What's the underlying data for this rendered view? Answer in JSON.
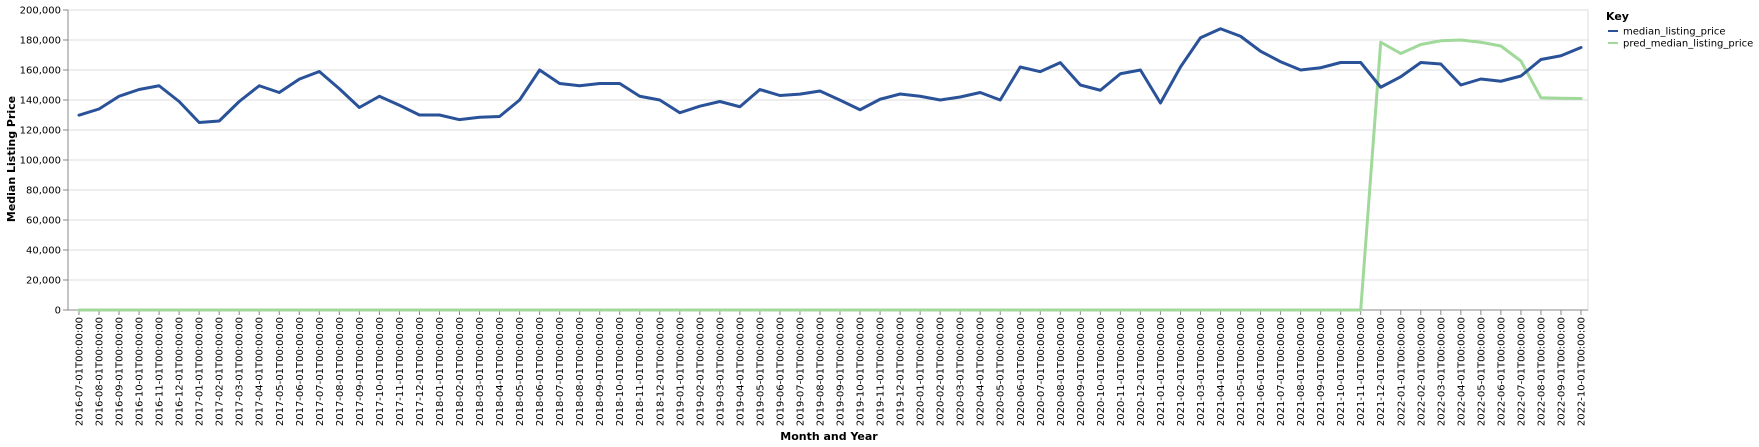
{
  "chart_data": {
    "type": "line",
    "xlabel": "Month and Year",
    "ylabel": "Median Listing Price",
    "ylim": [
      0,
      200000
    ],
    "y_ticks": [
      "0",
      "20,000",
      "40,000",
      "60,000",
      "80,000",
      "100,000",
      "120,000",
      "140,000",
      "160,000",
      "180,000",
      "200,000"
    ],
    "grid": true,
    "legend_position": "right",
    "legend_title": "Key",
    "x": [
      "2016-07-01T00:00:00",
      "2016-08-01T00:00:00",
      "2016-09-01T00:00:00",
      "2016-10-01T00:00:00",
      "2016-11-01T00:00:00",
      "2016-12-01T00:00:00",
      "2017-01-01T00:00:00",
      "2017-02-01T00:00:00",
      "2017-03-01T00:00:00",
      "2017-04-01T00:00:00",
      "2017-05-01T00:00:00",
      "2017-06-01T00:00:00",
      "2017-07-01T00:00:00",
      "2017-08-01T00:00:00",
      "2017-09-01T00:00:00",
      "2017-10-01T00:00:00",
      "2017-11-01T00:00:00",
      "2017-12-01T00:00:00",
      "2018-01-01T00:00:00",
      "2018-02-01T00:00:00",
      "2018-03-01T00:00:00",
      "2018-04-01T00:00:00",
      "2018-05-01T00:00:00",
      "2018-06-01T00:00:00",
      "2018-07-01T00:00:00",
      "2018-08-01T00:00:00",
      "2018-09-01T00:00:00",
      "2018-10-01T00:00:00",
      "2018-11-01T00:00:00",
      "2018-12-01T00:00:00",
      "2019-01-01T00:00:00",
      "2019-02-01T00:00:00",
      "2019-03-01T00:00:00",
      "2019-04-01T00:00:00",
      "2019-05-01T00:00:00",
      "2019-06-01T00:00:00",
      "2019-07-01T00:00:00",
      "2019-08-01T00:00:00",
      "2019-09-01T00:00:00",
      "2019-10-01T00:00:00",
      "2019-11-01T00:00:00",
      "2019-12-01T00:00:00",
      "2020-01-01T00:00:00",
      "2020-02-01T00:00:00",
      "2020-03-01T00:00:00",
      "2020-04-01T00:00:00",
      "2020-05-01T00:00:00",
      "2020-06-01T00:00:00",
      "2020-07-01T00:00:00",
      "2020-08-01T00:00:00",
      "2020-09-01T00:00:00",
      "2020-10-01T00:00:00",
      "2020-11-01T00:00:00",
      "2020-12-01T00:00:00",
      "2021-01-01T00:00:00",
      "2021-02-01T00:00:00",
      "2021-03-01T00:00:00",
      "2021-04-01T00:00:00",
      "2021-05-01T00:00:00",
      "2021-06-01T00:00:00",
      "2021-07-01T00:00:00",
      "2021-08-01T00:00:00",
      "2021-09-01T00:00:00",
      "2021-10-01T00:00:00",
      "2021-11-01T00:00:00",
      "2021-12-01T00:00:00",
      "2022-01-01T00:00:00",
      "2022-02-01T00:00:00",
      "2022-03-01T00:00:00",
      "2022-04-01T00:00:00",
      "2022-05-01T00:00:00",
      "2022-06-01T00:00:00",
      "2022-07-01T00:00:00",
      "2022-08-01T00:00:00",
      "2022-09-01T00:00:00",
      "2022-10-01T00:00:00"
    ],
    "series": [
      {
        "name": "median_listing_price",
        "color": "#2a5298",
        "values": [
          129900,
          134000,
          142500,
          147000,
          149500,
          139000,
          125000,
          126000,
          139000,
          149500,
          145000,
          153900,
          159000,
          147500,
          135000,
          142500,
          136500,
          130000,
          130000,
          126900,
          128500,
          129000,
          140000,
          160000,
          151000,
          149500,
          151000,
          151000,
          142500,
          140000,
          131500,
          135900,
          139000,
          135500,
          147000,
          143000,
          143900,
          146000,
          139900,
          133500,
          140500,
          144000,
          142500,
          140000,
          142000,
          145000,
          140000,
          162000,
          158900,
          164900,
          150000,
          146500,
          157500,
          160000,
          138000,
          162000,
          181500,
          187500,
          182500,
          172500,
          165500,
          160000,
          161500,
          165000,
          165000,
          148500,
          155500,
          165000,
          164000,
          150000,
          154000,
          152500,
          156000,
          167000,
          169500,
          175000
        ]
      },
      {
        "name": "pred_median_listing_price",
        "color": "#a1d99b",
        "values": [
          0,
          0,
          0,
          0,
          0,
          0,
          0,
          0,
          0,
          0,
          0,
          0,
          0,
          0,
          0,
          0,
          0,
          0,
          0,
          0,
          0,
          0,
          0,
          0,
          0,
          0,
          0,
          0,
          0,
          0,
          0,
          0,
          0,
          0,
          0,
          0,
          0,
          0,
          0,
          0,
          0,
          0,
          0,
          0,
          0,
          0,
          0,
          0,
          0,
          0,
          0,
          0,
          0,
          0,
          0,
          0,
          0,
          0,
          0,
          0,
          0,
          0,
          0,
          0,
          0,
          178500,
          171000,
          177000,
          179500,
          180000,
          178500,
          176000,
          166000,
          141500,
          141200,
          141000
        ]
      }
    ]
  }
}
